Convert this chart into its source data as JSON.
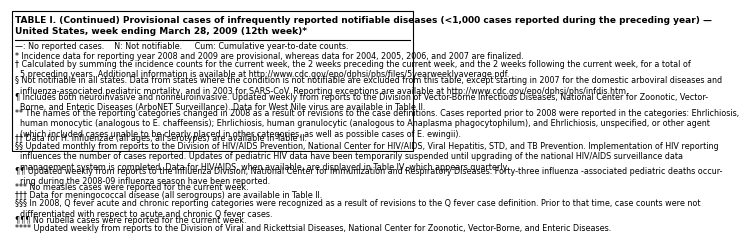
{
  "title_line1": "TABLE I. (Continued) Provisional cases of infrequently reported notifiable diseases (<1,000 cases reported during the preceding year) —",
  "title_line2": "United States, week ending March 28, 2009 (12th week)*",
  "footnote_line": "—: No reported cases.    N: Not notifiable.     Cum: Cumulative year-to-date counts.",
  "footnotes": [
    "* Incidence data for reporting year 2008 and 2009 are provisional, whereas data for 2004, 2005, 2006, and 2007 are finalized.",
    "† Calculated by summing the incidence counts for the current week, the 2 weeks preceding the current week, and the 2 weeks following the current week, for a total of\n  5 preceding years. Additional information is available at http://www.cdc.gov/epo/dphsi/phs/files/5yearweeklyaverage.pdf.",
    "§ Not notifiable in all states. Data from states where the condition is not notifiable are excluded from this table, except starting in 2007 for the domestic arboviral diseases and\n  influenza-associated pediatric mortality, and in 2003 for SARS-CoV. Reporting exceptions are available at http://www.cdc.gov/epo/dphsi/phs/infdis.htm.",
    "¶ Includes both neuroinvasive and nonneuroinvasive. Updated weekly from reports to the Division of Vector-Borne Infectious Diseases, National Center for Zoonotic, Vector-\n  Borne, and Enteric Diseases (ArboNET Surveillance). Data for West Nile virus are available in Table II.",
    "** The names of the reporting categories changed in 2008 as a result of revisions to the case definitions. Cases reported prior to 2008 were reported in the categories: Ehrlichiosis,\n  human monocytic (analogous to E. chaffeensis); Ehrlichiosis, human granulocytic (analogous to Anaplasma phagocytophilum), and Ehrlichiosis, unspecified, or other agent\n  (which included cases unable to be clearly placed in other categories, as well as possible cases of E. ewingii).",
    "†† Data for H. influenzae (all ages, all serotypes) are available in Table II.",
    "§§ Updated monthly from reports to the Division of HIV/AIDS Prevention, National Center for HIV/AIDS, Viral Hepatitis, STD, and TB Prevention. Implementation of HIV reporting\n  influences the number of cases reported. Updates of pediatric HIV data have been temporarily suspended until upgrading of the national HIV/AIDS surveillance data\n  management system is completed. Data for HIV/AIDS, when available, are displayed in Table IV, which appears quarterly.",
    "¶¶ Updated weekly from reports to the Influenza Division, National Center for Immunization and Respiratory Diseases. Forty-three influenza -associated pediatric deaths occur-\n  ring during the 2008-09 influenza season have been reported.",
    "*** No measles cases were reported for the current week.",
    "††† Data for meningococcal disease (all serogroups) are available in Table II.",
    "§§§ In 2008, Q fever acute and chronic reporting categories were recognized as a result of revisions to the Q fever case definition. Prior to that time, case counts were not\n  differentiated with respect to acute and chronic Q fever cases.",
    "¶¶¶ No rubella cases were reported for the current week.",
    "**** Updated weekly from reports to the Division of Viral and Rickettsial Diseases, National Center for Zoonotic, Vector-Borne, and Enteric Diseases."
  ],
  "bg_color": "#ffffff",
  "text_color": "#000000",
  "title_fontsize": 6.5,
  "body_fontsize": 5.8,
  "border_color": "#000000"
}
